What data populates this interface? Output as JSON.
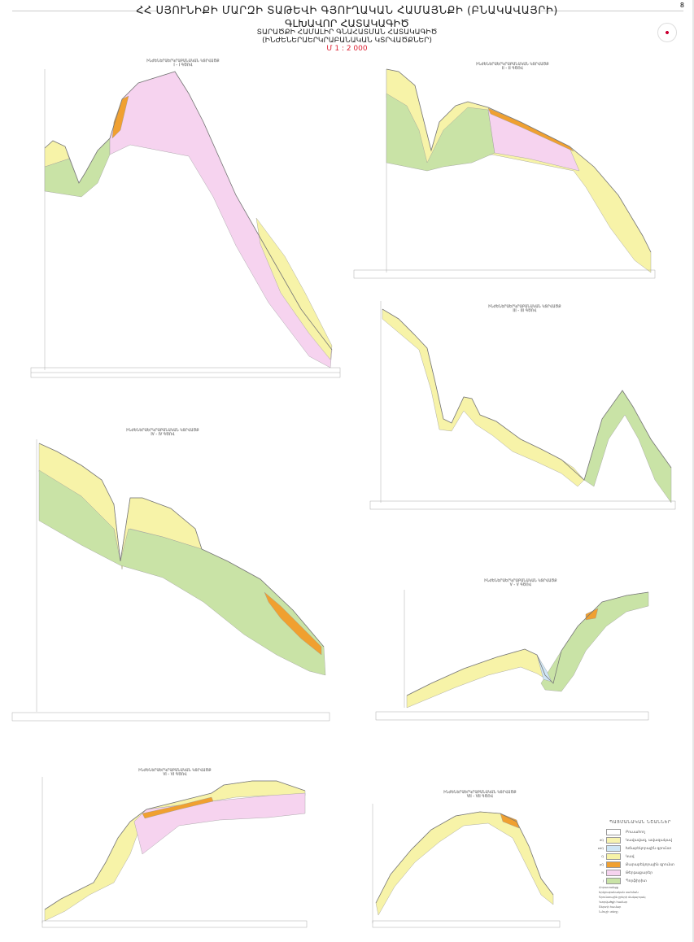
{
  "page_number": "8",
  "header": {
    "line1": "ՀՀ ՍՅՈՒՆԻՔԻ ՄԱՐԶԻ ՏԱԹԵՎԻ ԳՅՈՒՂԱԿԱՆ ՀԱՄԱՅՆՔԻ (ԲՆԱԿԱՎԱՅՐԻ)",
    "line2": "ԳԼԽԱՎՈՐ ՀԱՏԱԿԱԳԻԾ",
    "line3": "ՏԱՐԱԾՔԻ ՀԱՄԱԼԻՐ ԳՆԱՀԱՏՄԱՆ ՀԱՏԱԿԱԳԻԾ",
    "line4": "(ԻՆԺԵՆԵՐԱԵՐԿՐԱԲԱՆԱԿԱՆ ԿՏՐՎԱԾՔՆԵՐ)",
    "scale": "Մ 1 : 2 000"
  },
  "sections": [
    {
      "title": "ԻՆԺԵՆԵՐԱԵՐԿՐԱԲԱՆԱԿԱՆ ԿՏՐՎԱԾՔ",
      "line": "I - I ԳԾՈՎ"
    },
    {
      "title": "ԻՆԺԵՆԵՐԱԵՐԿՐԱԲԱՆԱԿԱՆ ԿՏՐՎԱԾՔ",
      "line": "II - II ԳԾՈՎ"
    },
    {
      "title": "ԻՆԺԵՆԵՐԱԵՐԿՐԱԲԱՆԱԿԱՆ ԿՏՐՎԱԾՔ",
      "line": "III - III ԳԾՈՎ"
    },
    {
      "title": "ԻՆԺԵՆԵՐԱԵՐԿՐԱԲԱՆԱԿԱՆ ԿՏՐՎԱԾՔ",
      "line": "IV - IV ԳԾՈՎ"
    },
    {
      "title": "ԻՆԺԵՆԵՐԱԵՐԿՐԱԲԱՆԱԿԱՆ ԿՏՐՎԱԾՔ",
      "line": "V - V ԳԾՈՎ"
    },
    {
      "title": "ԻՆԺԵՆԵՐԱԵՐԿՐԱԲԱՆԱԿԱՆ ԿՏՐՎԱԾՔ",
      "line": "VI - VI ԳԾՈՎ"
    },
    {
      "title": "ԻՆԺԵՆԵՐԱԵՐԿՐԱԲԱՆԱԿԱՆ ԿՏՐՎԱԾՔ",
      "line": "VII - VII ԳԾՈՎ"
    }
  ],
  "legend": {
    "title": "ՊԱՅՄԱՆԱԿԱՆ ՆՇԱՆՆԵՐ",
    "items": [
      {
        "code": "",
        "label": "Բուսահող",
        "color": "#ffffff"
      },
      {
        "code": "dQ",
        "label": "Կավավազ, ավազակավ",
        "color": "#f7f3b0"
      },
      {
        "code": "edQ",
        "label": "Խճաբեկորային գրունտ",
        "color": "#cfe6f5"
      },
      {
        "code": "Q",
        "label": "Կավ",
        "color": "#f7f3a8"
      },
      {
        "code": "pQ",
        "label": "Քարաբեկորային գրունտ",
        "color": "#f0a030"
      },
      {
        "code": "N",
        "label": "Թերթաքարեր",
        "color": "#f6d3ef"
      },
      {
        "code": "J",
        "label": "Պորֆիրիտ",
        "color": "#c9e3a6"
      }
    ],
    "notes": [
      "Հորատանցք",
      "Երկրաբանական սահման",
      "Գրունտային ջրերի մակարդակ",
      "Կտրվածքի համար",
      "Շերտի համար",
      "Նմուշի տեղը"
    ]
  },
  "colors": {
    "green": "#c9e3a6",
    "yellow": "#f7f3a8",
    "pink": "#f6d3ef",
    "orange": "#f0a030",
    "scale_red": "#dd2233"
  }
}
